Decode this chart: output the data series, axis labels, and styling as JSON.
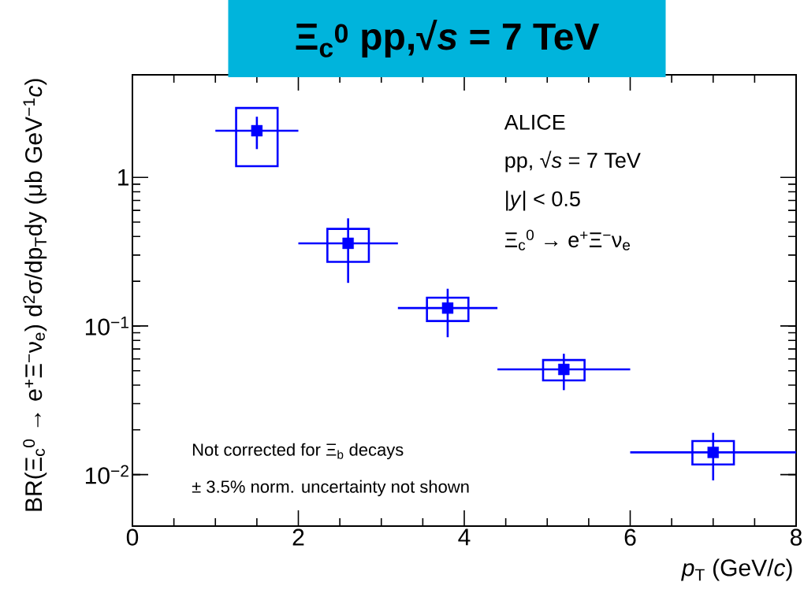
{
  "chart_data": {
    "type": "scatter",
    "title": "Ξ$_{c}$$^{0}$ pp,√*s* = 7 TeV",
    "xlabel": "*p*$_{T}$ (GeV/*c*)",
    "ylabel": "BR(Ξ$_{c}$$^{0}$ → e$^{+}$Ξ$^{−}$ν$_{e}$) d$^{2}$σ/dp$_{T}$dy (μb GeV$^{−1}$*c*)",
    "annotations": [
      "ALICE",
      "pp, √*s* = 7 TeV",
      "|*y*| < 0.5",
      "Ξ$_{c}$$^{0}$ → e$^{+}$Ξ$^{−}$ν$_{e}$",
      "Not corrected for Ξ$_{b}$ decays",
      "± 3.5% norm. uncertainty not shown"
    ],
    "log": "y",
    "xlim": [
      0,
      8
    ],
    "ylim": [
      0.0045,
      4.9
    ],
    "xticks": [
      0,
      2,
      4,
      6,
      8
    ],
    "yticks": [
      {
        "value": 0.01,
        "label": "10$^{−2}$"
      },
      {
        "value": 0.1,
        "label": "10$^{−1}$"
      },
      1
    ],
    "marker": "square",
    "series": [
      {
        "color": "#0000ff",
        "x": [
          1.5,
          2.6,
          3.8,
          5.2,
          7
        ],
        "values": [
          2.06,
          0.36,
          0.132,
          0.051,
          0.0141
        ],
        "errors": [
          [
            1.55,
            2.56
          ],
          [
            0.195,
            0.53
          ],
          [
            0.084,
            0.178
          ],
          [
            0.037,
            0.065
          ],
          [
            0.00914,
            0.0191
          ]
        ],
        "xerrors": [
          [
            1,
            2
          ],
          [
            2,
            3.2
          ],
          [
            3.2,
            4.4
          ],
          [
            4.4,
            6
          ],
          [
            6,
            8
          ]
        ]
      },
      {
        "type": "bar",
        "color": "#0000ff",
        "x": [
          1.5,
          2.6,
          3.8,
          5.2,
          7
        ],
        "base": [
          1.19,
          0.27,
          0.108,
          0.043,
          0.0117
        ],
        "values": [
          1.74,
          0.18,
          0.047,
          0.016,
          0.0051
        ]
      }
    ]
  }
}
